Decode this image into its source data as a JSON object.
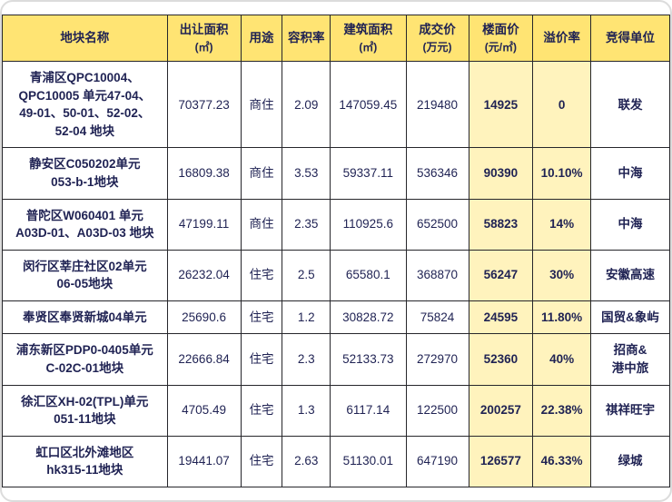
{
  "colors": {
    "page_bg": "#ffffff",
    "header_bg": "#ffe473",
    "highlight_bg": "#fff3bd",
    "text": "#1f2253",
    "border": "#26262b"
  },
  "chart_data": {
    "type": "table",
    "columns": [
      {
        "name": "plot-name",
        "label": "地块名称",
        "sub": "",
        "highlight": false
      },
      {
        "name": "transfer-area",
        "label": "出让面积",
        "sub": "(㎡)",
        "highlight": false
      },
      {
        "name": "use",
        "label": "用途",
        "sub": "",
        "highlight": false
      },
      {
        "name": "far",
        "label": "容积率",
        "sub": "",
        "highlight": false
      },
      {
        "name": "building-area",
        "label": "建筑面积",
        "sub": "(㎡)",
        "highlight": false
      },
      {
        "name": "deal-price",
        "label": "成交价",
        "sub": "(万元)",
        "highlight": false
      },
      {
        "name": "floor-price",
        "label": "楼面价",
        "sub": "(元/㎡)",
        "highlight": true
      },
      {
        "name": "premium-rate",
        "label": "溢价率",
        "sub": "",
        "highlight": true
      },
      {
        "name": "winner",
        "label": "竞得单位",
        "sub": "",
        "highlight": false
      }
    ],
    "rows": [
      [
        "青浦区QPC10004、\nQPC10005 单元47-04、\n49-01、50-01、52-02、\n52-04 地块",
        "70377.23",
        "商住",
        "2.09",
        "147059.45",
        "219480",
        "14925",
        "0",
        "联发"
      ],
      [
        "静安区C050202单元\n053-b-1地块",
        "16809.38",
        "商住",
        "3.53",
        "59337.11",
        "536346",
        "90390",
        "10.10%",
        "中海"
      ],
      [
        "普陀区W060401 单元\nA03D-01、A03D-03 地块",
        "47199.11",
        "商住",
        "2.35",
        "110925.6",
        "652500",
        "58823",
        "14%",
        "中海"
      ],
      [
        "闵行区莘庄社区02单元\n06-05地块",
        "26232.04",
        "住宅",
        "2.5",
        "65580.1",
        "368870",
        "56247",
        "30%",
        "安徽高速"
      ],
      [
        "奉贤区奉贤新城04单元",
        "25690.6",
        "住宅",
        "1.2",
        "30828.72",
        "75824",
        "24595",
        "11.80%",
        "国贸&象屿"
      ],
      [
        "浦东新区PDP0-0405单元\nC-02C-01地块",
        "22666.84",
        "住宅",
        "2.3",
        "52133.73",
        "272970",
        "52360",
        "40%",
        "招商&\n港中旅"
      ],
      [
        "徐汇区XH-02(TPL)单元\n051-11地块",
        "4705.49",
        "住宅",
        "1.3",
        "6117.14",
        "122500",
        "200257",
        "22.38%",
        "祺祥旺宇"
      ],
      [
        "虹口区北外滩地区\nhk315-11地块",
        "19441.07",
        "住宅",
        "2.63",
        "51130.01",
        "647190",
        "126577",
        "46.33%",
        "绿城"
      ]
    ]
  }
}
